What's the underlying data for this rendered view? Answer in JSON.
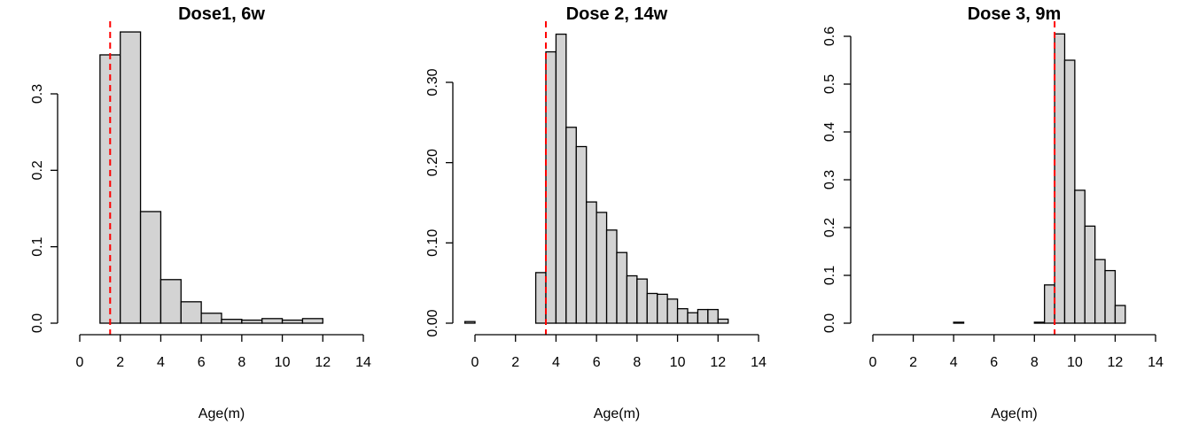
{
  "colors": {
    "bar_fill": "#d3d3d3",
    "bar_stroke": "#000000",
    "ref_line": "#ff0000",
    "background": "#ffffff"
  },
  "chart_data": [
    {
      "type": "bar",
      "title": "Dose1, 6w",
      "xlabel": "Age(m)",
      "ylabel": "",
      "xlim": [
        0,
        14
      ],
      "ylim": [
        0,
        0.38
      ],
      "x_ticks": [
        "0",
        "2",
        "4",
        "6",
        "8",
        "10",
        "12",
        "14"
      ],
      "y_ticks": [
        "0.0",
        "0.1",
        "0.2",
        "0.3"
      ],
      "bin_width": 1,
      "bins_start": [
        1,
        2,
        3,
        4,
        5,
        6,
        7,
        8,
        9,
        10,
        11,
        12
      ],
      "values": [
        0.351,
        0.381,
        0.146,
        0.057,
        0.028,
        0.013,
        0.005,
        0.004,
        0.006,
        0.004,
        0.006,
        0.0
      ],
      "reference_line_x": 1.5,
      "grid": false,
      "legend": "none"
    },
    {
      "type": "bar",
      "title": "Dose 2, 14w",
      "xlabel": "Age(m)",
      "ylabel": "",
      "xlim": [
        0,
        14
      ],
      "ylim": [
        0,
        0.36
      ],
      "x_ticks": [
        "0",
        "2",
        "4",
        "6",
        "8",
        "10",
        "12",
        "14"
      ],
      "y_ticks": [
        "0.00",
        "0.10",
        "0.20",
        "0.30"
      ],
      "bin_width": 0.5,
      "bins_start": [
        -0.5,
        0,
        0.5,
        1,
        1.5,
        2,
        2.5,
        3,
        3.5,
        4,
        4.5,
        5,
        5.5,
        6,
        6.5,
        7,
        7.5,
        8,
        8.5,
        9,
        9.5,
        10,
        10.5,
        11,
        11.5,
        12
      ],
      "values": [
        0.002,
        0,
        0,
        0,
        0,
        0,
        0,
        0.063,
        0.338,
        0.36,
        0.244,
        0.22,
        0.151,
        0.138,
        0.116,
        0.088,
        0.059,
        0.055,
        0.037,
        0.036,
        0.03,
        0.018,
        0.013,
        0.017,
        0.017,
        0.005
      ],
      "reference_line_x": 3.5,
      "grid": false,
      "legend": "none"
    },
    {
      "type": "bar",
      "title": "Dose 3, 9m",
      "xlabel": "Age(m)",
      "ylabel": "",
      "xlim": [
        0,
        14
      ],
      "ylim": [
        0,
        0.61
      ],
      "x_ticks": [
        "0",
        "2",
        "4",
        "6",
        "8",
        "10",
        "12",
        "14"
      ],
      "y_ticks": [
        "0.0",
        "0.1",
        "0.2",
        "0.3",
        "0.4",
        "0.5",
        "0.6"
      ],
      "bin_width": 0.5,
      "bins_start": [
        0,
        0.5,
        1,
        1.5,
        2,
        2.5,
        3,
        3.5,
        4,
        4.5,
        5,
        5.5,
        6,
        6.5,
        7,
        7.5,
        8,
        8.5,
        9,
        9.5,
        10,
        10.5,
        11,
        11.5,
        12
      ],
      "values": [
        0,
        0,
        0,
        0,
        0,
        0,
        0,
        0,
        0.002,
        0,
        0,
        0,
        0,
        0,
        0,
        0,
        0.002,
        0.08,
        0.605,
        0.55,
        0.278,
        0.203,
        0.133,
        0.11,
        0.037
      ],
      "reference_line_x": 9,
      "grid": false,
      "legend": "none"
    }
  ]
}
